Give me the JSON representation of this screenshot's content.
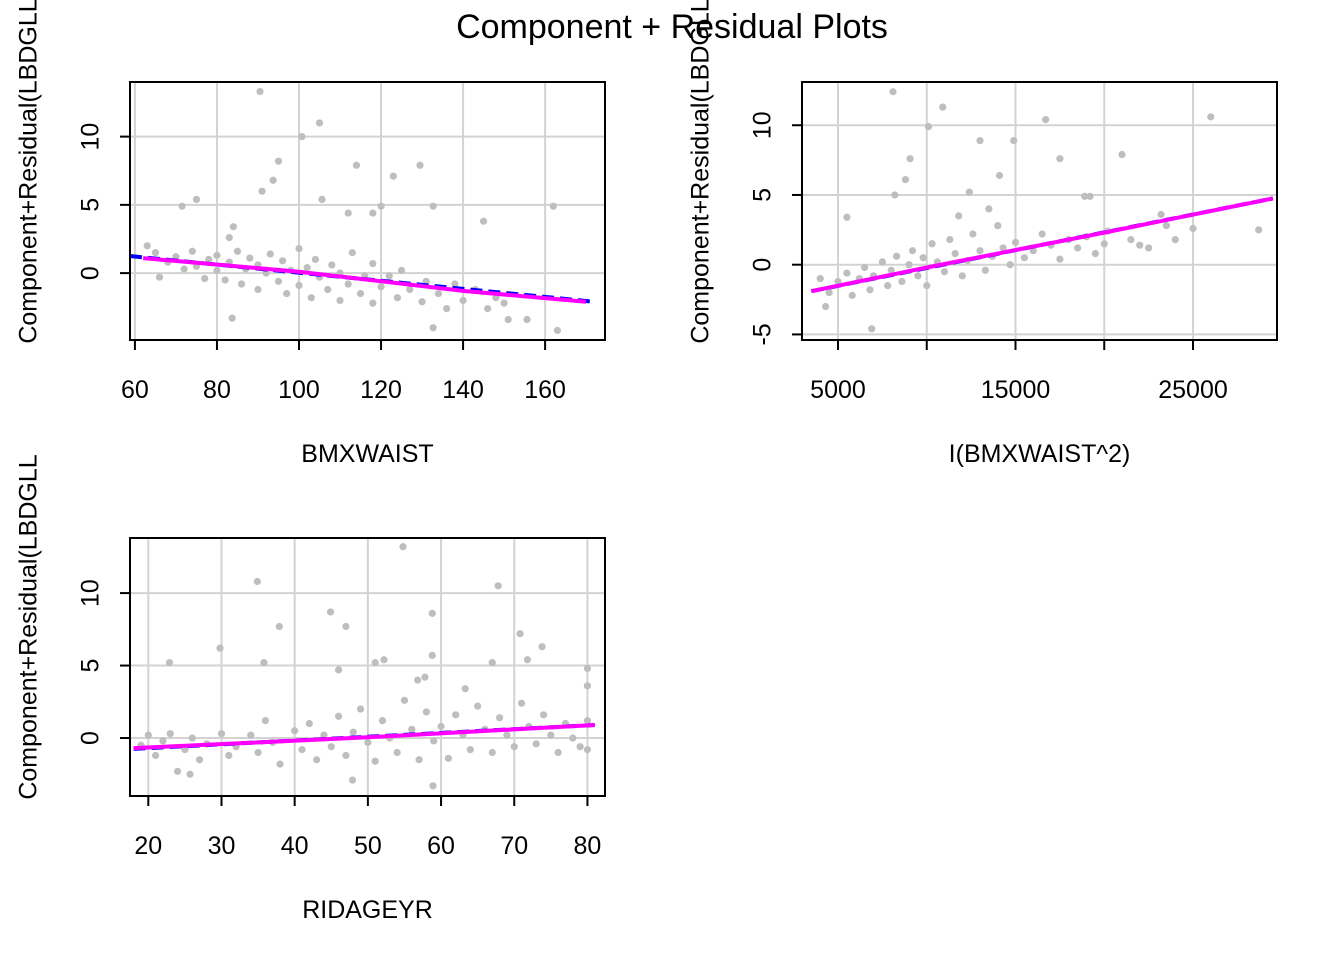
{
  "title": "Component + Residual Plots",
  "colors": {
    "points": "#bebebe",
    "linear_fit": "#0000ff",
    "smooth": "#ff00ff",
    "grid": "#d3d3d3",
    "axis": "#000000"
  },
  "chart_data": [
    {
      "type": "scatter",
      "xlabel": "BMXWAIST",
      "ylabel": "Component+Residual(LBDGLL",
      "xlim": [
        58.8,
        174.6
      ],
      "ylim": [
        -4.9,
        14.0
      ],
      "xticks": [
        60,
        80,
        100,
        120,
        140,
        160
      ],
      "yticks": [
        0,
        5,
        10
      ],
      "grid": true,
      "points": [
        [
          90.5,
          13.3
        ],
        [
          100.7,
          10
        ],
        [
          105,
          11
        ],
        [
          95,
          8.2
        ],
        [
          93.7,
          6.8
        ],
        [
          91,
          6
        ],
        [
          114,
          7.9
        ],
        [
          123,
          7.1
        ],
        [
          129.5,
          7.9
        ],
        [
          132.7,
          4.9
        ],
        [
          145,
          3.8
        ],
        [
          162,
          4.9
        ],
        [
          112,
          4.4
        ],
        [
          105.6,
          5.4
        ],
        [
          75,
          5.4
        ],
        [
          71.5,
          4.9
        ],
        [
          83,
          2.6
        ],
        [
          84,
          3.4
        ],
        [
          118,
          4.4
        ],
        [
          120,
          4.9
        ],
        [
          83.7,
          -3.3
        ],
        [
          132.7,
          -4
        ],
        [
          163,
          -4.2
        ],
        [
          155.6,
          -3.4
        ],
        [
          151,
          -3.4
        ],
        [
          65,
          1.5
        ],
        [
          68,
          0.8
        ],
        [
          70,
          1.2
        ],
        [
          72,
          0.3
        ],
        [
          74,
          1.6
        ],
        [
          75,
          0.5
        ],
        [
          77,
          -0.4
        ],
        [
          78,
          1.0
        ],
        [
          80,
          0.2
        ],
        [
          80,
          1.3
        ],
        [
          82,
          -0.5
        ],
        [
          83,
          0.8
        ],
        [
          85,
          1.6
        ],
        [
          86,
          -0.8
        ],
        [
          87,
          0.3
        ],
        [
          88,
          1.1
        ],
        [
          90,
          -1.2
        ],
        [
          90,
          0.6
        ],
        [
          92,
          0.0
        ],
        [
          93,
          1.4
        ],
        [
          95,
          -0.6
        ],
        [
          96,
          0.9
        ],
        [
          97,
          -1.5
        ],
        [
          98,
          0.2
        ],
        [
          100,
          1.8
        ],
        [
          100,
          -0.9
        ],
        [
          102,
          0.4
        ],
        [
          103,
          -1.8
        ],
        [
          104,
          1.0
        ],
        [
          105,
          -0.3
        ],
        [
          107,
          -1.2
        ],
        [
          108,
          0.6
        ],
        [
          110,
          -2.0
        ],
        [
          110,
          0.0
        ],
        [
          112,
          -0.8
        ],
        [
          113,
          1.5
        ],
        [
          115,
          -1.5
        ],
        [
          116,
          -0.2
        ],
        [
          118,
          -2.2
        ],
        [
          118,
          0.7
        ],
        [
          120,
          -1.0
        ],
        [
          122,
          -0.2
        ],
        [
          124,
          -1.8
        ],
        [
          125,
          0.2
        ],
        [
          127,
          -1.2
        ],
        [
          130,
          -2.1
        ],
        [
          131,
          -0.6
        ],
        [
          134,
          -1.5
        ],
        [
          136,
          -2.6
        ],
        [
          138,
          -0.8
        ],
        [
          140,
          -2.0
        ],
        [
          143,
          -1.2
        ],
        [
          146,
          -2.6
        ],
        [
          148,
          -1.8
        ],
        [
          150,
          -2.2
        ],
        [
          63,
          2.0
        ],
        [
          66,
          -0.3
        ]
      ],
      "linear_fit": [
        [
          58.8,
          1.25
        ],
        [
          172,
          -2.1
        ]
      ],
      "smooth": [
        [
          62,
          1.1
        ],
        [
          100,
          0.1
        ],
        [
          140,
          -1.3
        ],
        [
          170,
          -2.1
        ]
      ]
    },
    {
      "type": "scatter",
      "xlabel": "I(BMXWAIST^2)",
      "ylabel": "Component+Residual(LBDGLL",
      "xlim": [
        2972,
        29732
      ],
      "ylim": [
        -5.4,
        13.1
      ],
      "xticks": [
        5000,
        10000,
        15000,
        20000,
        25000
      ],
      "xticklabels": [
        "5000",
        "",
        "15000",
        "",
        "25000"
      ],
      "yticks": [
        -5,
        0,
        5,
        10
      ],
      "grid": true,
      "points": [
        [
          8100,
          12.4
        ],
        [
          10900,
          11.3
        ],
        [
          10100,
          9.9
        ],
        [
          9060,
          7.6
        ],
        [
          16700,
          10.4
        ],
        [
          13000,
          8.9
        ],
        [
          14900,
          8.9
        ],
        [
          26000,
          10.6
        ],
        [
          21000,
          7.9
        ],
        [
          17500,
          7.6
        ],
        [
          14100,
          6.4
        ],
        [
          12400,
          5.2
        ],
        [
          8800,
          6.1
        ],
        [
          8200,
          5
        ],
        [
          5500,
          3.4
        ],
        [
          28700,
          2.5
        ],
        [
          24000,
          1.8
        ],
        [
          20200,
          2.4
        ],
        [
          18900,
          4.9
        ],
        [
          19200,
          4.9
        ],
        [
          23200,
          3.6
        ],
        [
          22000,
          1.4
        ],
        [
          4300,
          -3
        ],
        [
          6900,
          -4.6
        ],
        [
          4000,
          -1.0
        ],
        [
          4500,
          -2.0
        ],
        [
          5000,
          -1.2
        ],
        [
          5500,
          -0.6
        ],
        [
          5800,
          -2.2
        ],
        [
          6200,
          -1.0
        ],
        [
          6500,
          -0.2
        ],
        [
          6800,
          -1.8
        ],
        [
          7000,
          -0.8
        ],
        [
          7500,
          0.2
        ],
        [
          7800,
          -1.5
        ],
        [
          8000,
          -0.4
        ],
        [
          8300,
          0.6
        ],
        [
          8600,
          -1.2
        ],
        [
          9000,
          0.0
        ],
        [
          9200,
          1.0
        ],
        [
          9500,
          -0.8
        ],
        [
          9800,
          0.5
        ],
        [
          10000,
          -1.5
        ],
        [
          10300,
          1.5
        ],
        [
          10600,
          0.2
        ],
        [
          11000,
          -0.5
        ],
        [
          11300,
          1.8
        ],
        [
          11600,
          0.8
        ],
        [
          12000,
          -0.8
        ],
        [
          12300,
          0.3
        ],
        [
          12600,
          2.2
        ],
        [
          13000,
          1.0
        ],
        [
          13300,
          -0.4
        ],
        [
          13700,
          0.6
        ],
        [
          14000,
          2.8
        ],
        [
          14300,
          1.2
        ],
        [
          14700,
          0.0
        ],
        [
          15000,
          1.6
        ],
        [
          15500,
          0.5
        ],
        [
          16000,
          1.0
        ],
        [
          16500,
          2.2
        ],
        [
          17000,
          1.4
        ],
        [
          17500,
          0.4
        ],
        [
          18000,
          1.8
        ],
        [
          18500,
          1.2
        ],
        [
          19000,
          2.0
        ],
        [
          19500,
          0.8
        ],
        [
          20000,
          1.5
        ],
        [
          21500,
          1.8
        ],
        [
          22500,
          1.2
        ],
        [
          23500,
          2.8
        ],
        [
          25000,
          2.6
        ],
        [
          11800,
          3.5
        ],
        [
          13500,
          4.0
        ]
      ],
      "linear_fit": [
        [
          3500,
          -1.9
        ],
        [
          29500,
          4.75
        ]
      ],
      "smooth": [
        [
          3500,
          -1.9
        ],
        [
          10000,
          -0.2
        ],
        [
          20000,
          2.3
        ],
        [
          29500,
          4.75
        ]
      ]
    },
    {
      "type": "scatter",
      "xlabel": "RIDAGEYR",
      "ylabel": "Component+Residual(LBDGLL",
      "xlim": [
        17.5,
        82.4
      ],
      "ylim": [
        -4.0,
        13.8
      ],
      "xticks": [
        20,
        30,
        40,
        50,
        60,
        70,
        80
      ],
      "yticks": [
        0,
        5,
        10
      ],
      "grid": true,
      "points": [
        [
          54.8,
          13.2
        ],
        [
          34.9,
          10.8
        ],
        [
          67.8,
          10.5
        ],
        [
          44.9,
          8.7
        ],
        [
          58.8,
          8.6
        ],
        [
          47,
          7.7
        ],
        [
          37.9,
          7.7
        ],
        [
          70.8,
          7.2
        ],
        [
          29.8,
          6.2
        ],
        [
          73.8,
          6.3
        ],
        [
          22.9,
          5.2
        ],
        [
          35.8,
          5.2
        ],
        [
          58.8,
          5.7
        ],
        [
          67,
          5.2
        ],
        [
          71.8,
          5.4
        ],
        [
          80,
          4.8
        ],
        [
          80,
          3.6
        ],
        [
          51,
          5.2
        ],
        [
          52.2,
          5.4
        ],
        [
          46,
          4.7
        ],
        [
          57.8,
          4.2
        ],
        [
          56.8,
          4
        ],
        [
          63.3,
          3.4
        ],
        [
          47.9,
          -2.9
        ],
        [
          58.9,
          -3.3
        ],
        [
          25.7,
          -2.5
        ],
        [
          19,
          -0.5
        ],
        [
          20,
          0.2
        ],
        [
          21,
          -1.2
        ],
        [
          22,
          -0.2
        ],
        [
          23,
          0.3
        ],
        [
          24,
          -2.3
        ],
        [
          25,
          -0.8
        ],
        [
          26,
          0.0
        ],
        [
          27,
          -1.5
        ],
        [
          28,
          -0.4
        ],
        [
          30,
          0.3
        ],
        [
          31,
          -1.2
        ],
        [
          32,
          -0.6
        ],
        [
          34,
          0.2
        ],
        [
          35,
          -1.0
        ],
        [
          36,
          1.2
        ],
        [
          37,
          -0.3
        ],
        [
          38,
          -1.8
        ],
        [
          40,
          0.5
        ],
        [
          41,
          -0.8
        ],
        [
          42,
          1.0
        ],
        [
          43,
          -1.5
        ],
        [
          44,
          0.2
        ],
        [
          45,
          -0.6
        ],
        [
          46,
          1.5
        ],
        [
          47,
          -1.2
        ],
        [
          48,
          0.4
        ],
        [
          49,
          2.0
        ],
        [
          50,
          -0.3
        ],
        [
          51,
          -1.6
        ],
        [
          52,
          1.2
        ],
        [
          53,
          0.0
        ],
        [
          54,
          -1.0
        ],
        [
          55,
          2.6
        ],
        [
          56,
          0.6
        ],
        [
          57,
          -1.5
        ],
        [
          58,
          1.8
        ],
        [
          59,
          -0.2
        ],
        [
          60,
          0.8
        ],
        [
          61,
          -1.4
        ],
        [
          62,
          1.6
        ],
        [
          63,
          0.2
        ],
        [
          64,
          -0.8
        ],
        [
          65,
          2.2
        ],
        [
          66,
          0.6
        ],
        [
          67,
          -1.0
        ],
        [
          68,
          1.4
        ],
        [
          69,
          0.2
        ],
        [
          70,
          -0.6
        ],
        [
          71,
          2.4
        ],
        [
          72,
          0.8
        ],
        [
          73,
          -0.4
        ],
        [
          74,
          1.6
        ],
        [
          75,
          0.2
        ],
        [
          76,
          -1.0
        ],
        [
          77,
          1.0
        ],
        [
          78,
          0.0
        ],
        [
          79,
          -0.6
        ],
        [
          80,
          1.2
        ],
        [
          80,
          -0.8
        ]
      ],
      "linear_fit": [
        [
          18,
          -0.75
        ],
        [
          81,
          0.9
        ]
      ],
      "smooth": [
        [
          18,
          -0.7
        ],
        [
          50,
          0.05
        ],
        [
          81,
          0.9
        ]
      ]
    }
  ]
}
